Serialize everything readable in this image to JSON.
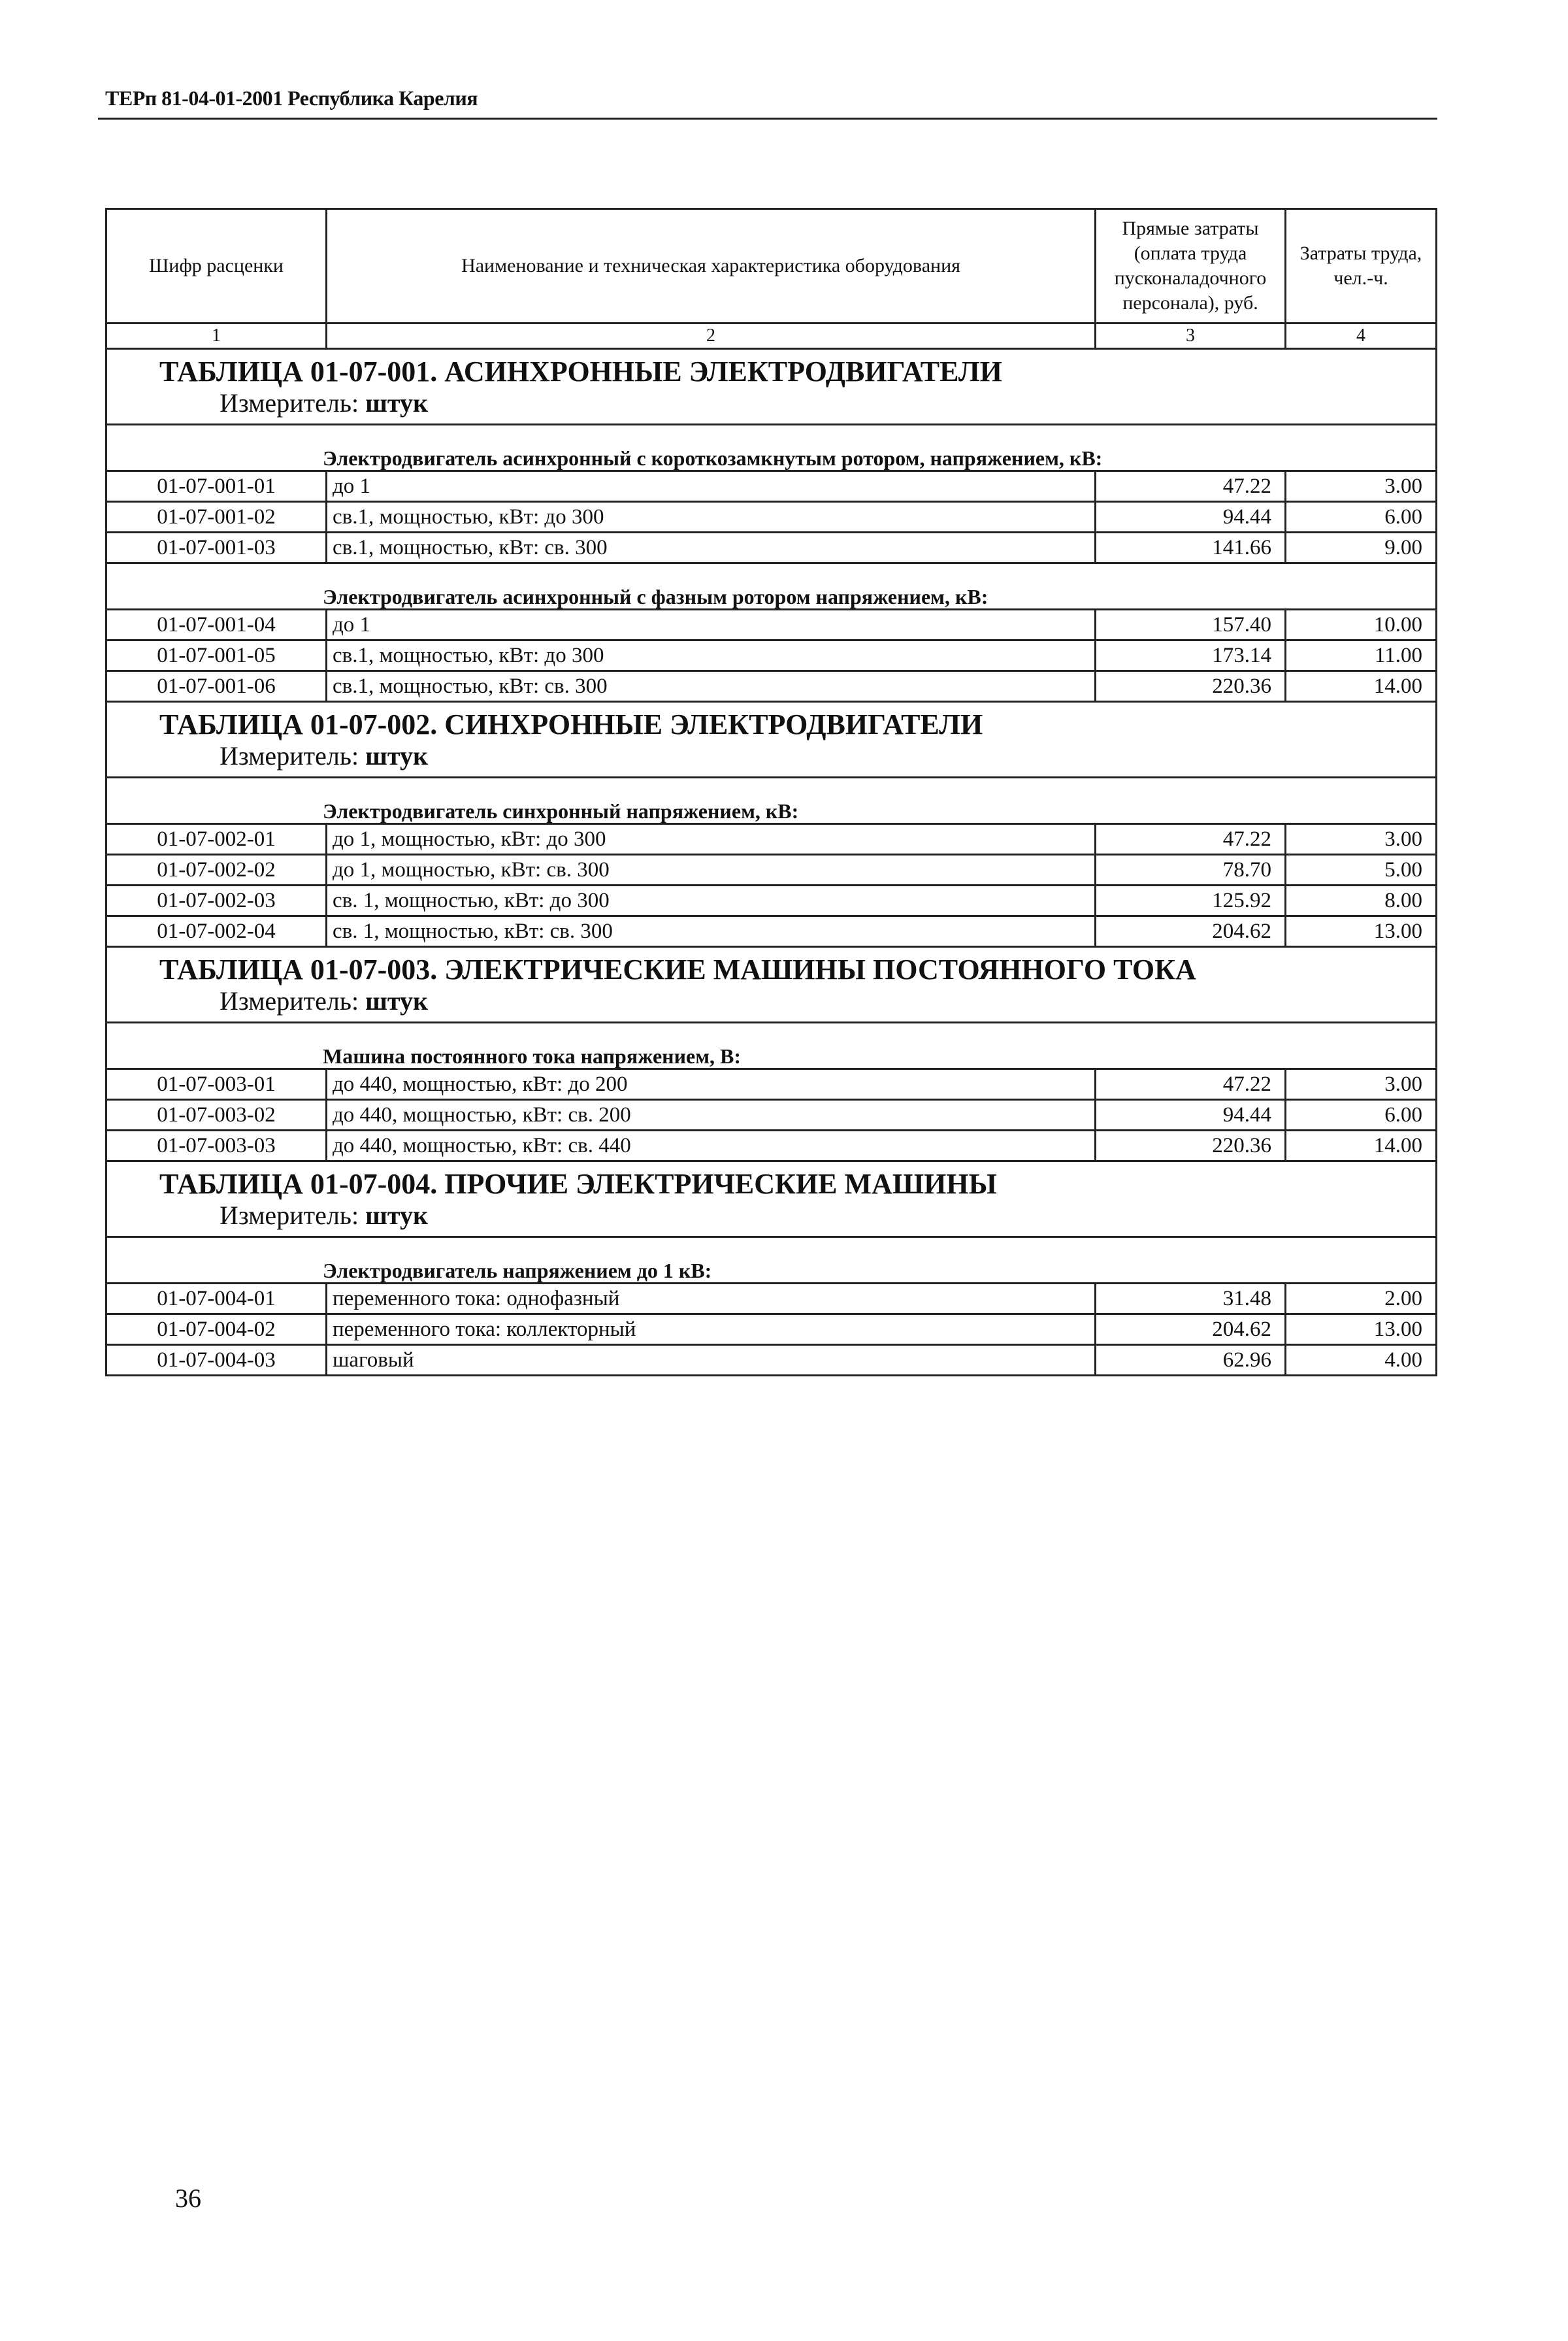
{
  "header": {
    "title": "ТЕРп 81-04-01-2001 Республика Карелия"
  },
  "columns": [
    "Шифр расценки",
    "Наименование и техническая характеристика оборудования",
    "Прямые затраты (оплата труда пусконаладочного персонала), руб.",
    "Затраты труда, чел.-ч."
  ],
  "column_numbers": [
    "1",
    "2",
    "3",
    "4"
  ],
  "sections": [
    {
      "title": "ТАБЛИЦА  01-07-001. АСИНХРОННЫЕ ЭЛЕКТРОДВИГАТЕЛИ",
      "unit_label": "Измеритель:",
      "unit": "штук",
      "groups": [
        {
          "heading": "Электродвигатель асинхронный с короткозамкнутым ротором, напряжением, кВ:",
          "rows": [
            [
              "01-07-001-01",
              "до 1",
              "47.22",
              "3.00"
            ],
            [
              "01-07-001-02",
              "св.1, мощностью, кВт: до 300",
              "94.44",
              "6.00"
            ],
            [
              "01-07-001-03",
              "св.1, мощностью, кВт: св. 300",
              "141.66",
              "9.00"
            ]
          ]
        },
        {
          "heading": "Электродвигатель асинхронный с фазным ротором напряжением, кВ:",
          "rows": [
            [
              "01-07-001-04",
              "до 1",
              "157.40",
              "10.00"
            ],
            [
              "01-07-001-05",
              "св.1, мощностью, кВт: до 300",
              "173.14",
              "11.00"
            ],
            [
              "01-07-001-06",
              "св.1, мощностью, кВт: св. 300",
              "220.36",
              "14.00"
            ]
          ]
        }
      ]
    },
    {
      "title": "ТАБЛИЦА  01-07-002. СИНХРОННЫЕ ЭЛЕКТРОДВИГАТЕЛИ",
      "unit_label": "Измеритель:",
      "unit": "штук",
      "groups": [
        {
          "heading": "Электродвигатель синхронный напряжением, кВ:",
          "rows": [
            [
              "01-07-002-01",
              "до 1, мощностью, кВт: до 300",
              "47.22",
              "3.00"
            ],
            [
              "01-07-002-02",
              "до 1, мощностью, кВт: св. 300",
              "78.70",
              "5.00"
            ],
            [
              "01-07-002-03",
              "св. 1, мощностью, кВт: до 300",
              "125.92",
              "8.00"
            ],
            [
              "01-07-002-04",
              "св. 1, мощностью, кВт: св. 300",
              "204.62",
              "13.00"
            ]
          ]
        }
      ]
    },
    {
      "title": "ТАБЛИЦА  01-07-003. ЭЛЕКТРИЧЕСКИЕ МАШИНЫ ПОСТОЯННОГО ТОКА",
      "unit_label": "Измеритель:",
      "unit": "штук",
      "groups": [
        {
          "heading": "Машина постоянного тока напряжением, В:",
          "rows": [
            [
              "01-07-003-01",
              "до 440, мощностью, кВт: до 200",
              "47.22",
              "3.00"
            ],
            [
              "01-07-003-02",
              "до 440, мощностью, кВт: св. 200",
              "94.44",
              "6.00"
            ],
            [
              "01-07-003-03",
              "до 440, мощностью, кВт: св. 440",
              "220.36",
              "14.00"
            ]
          ]
        }
      ]
    },
    {
      "title": "ТАБЛИЦА  01-07-004. ПРОЧИЕ ЭЛЕКТРИЧЕСКИЕ МАШИНЫ",
      "unit_label": "Измеритель:",
      "unit": "штук",
      "groups": [
        {
          "heading": "Электродвигатель напряжением до 1 кВ:",
          "rows": [
            [
              "01-07-004-01",
              "переменного тока: однофазный",
              "31.48",
              "2.00"
            ],
            [
              "01-07-004-02",
              "переменного тока: коллекторный",
              "204.62",
              "13.00"
            ],
            [
              "01-07-004-03",
              "шаговый",
              "62.96",
              "4.00"
            ]
          ]
        }
      ]
    }
  ],
  "footer": {
    "page_number": "36"
  }
}
